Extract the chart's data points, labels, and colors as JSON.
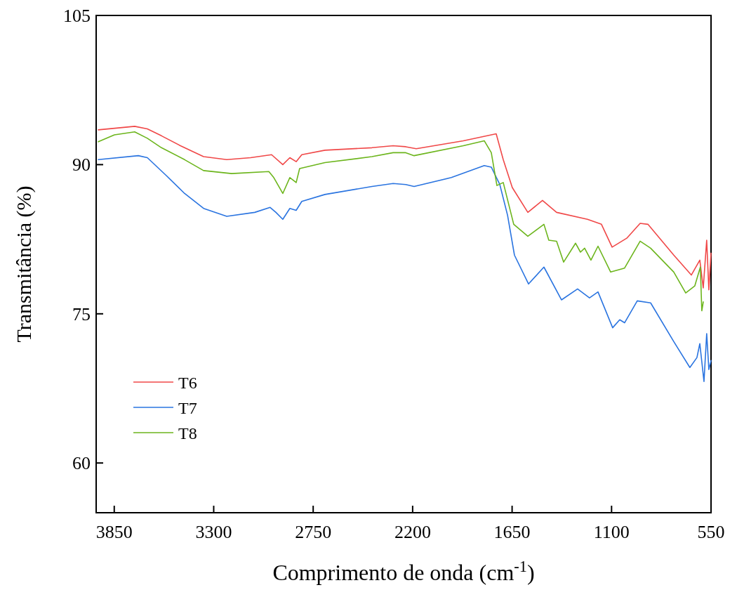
{
  "chart_data": {
    "type": "line",
    "xlabel": "Comprimento de onda (cm$^{-1}$)",
    "ylabel": "Transmitância (%)",
    "xlim": [
      3950,
      550
    ],
    "xticks": [
      3850,
      3300,
      2750,
      2200,
      1650,
      1100,
      550
    ],
    "ylim": [
      55,
      105
    ],
    "yticks": [
      60,
      75,
      90,
      105
    ],
    "grid": false,
    "legend": "bottom left",
    "marker": "none",
    "line_style": "solid",
    "series": [
      {
        "name": "T6",
        "color": "#f04848",
        "x": [
          3938,
          3737,
          3667,
          3589,
          3484,
          3356,
          3228,
          3096,
          2980,
          2918,
          2879,
          2844,
          2813,
          2685,
          2425,
          2308,
          2238,
          2180,
          1920,
          1738,
          1699,
          1649,
          1563,
          1482,
          1404,
          1233,
          1156,
          1097,
          1016,
          942,
          899,
          756,
          659,
          612,
          593,
          574,
          562,
          550
        ],
        "values": [
          93.5,
          93.85,
          93.6,
          92.9,
          91.9,
          90.8,
          90.5,
          90.7,
          91.0,
          90.0,
          90.7,
          90.3,
          91.0,
          91.45,
          91.7,
          91.9,
          91.8,
          91.6,
          92.4,
          93.1,
          90.5,
          87.7,
          85.2,
          86.4,
          85.2,
          84.5,
          84.0,
          81.7,
          82.6,
          84.1,
          84.0,
          80.9,
          78.9,
          80.4,
          77.6,
          82.4,
          77.4,
          81.1
        ]
      },
      {
        "name": "T7",
        "color": "#2a74e0",
        "x": [
          3938,
          3717,
          3667,
          3562,
          3461,
          3356,
          3228,
          3073,
          2988,
          2956,
          2918,
          2879,
          2844,
          2813,
          2685,
          2425,
          2308,
          2238,
          2192,
          1986,
          1804,
          1765,
          1718,
          1675,
          1637,
          1559,
          1474,
          1377,
          1288,
          1222,
          1175,
          1094,
          1055,
          1028,
          958,
          884,
          756,
          667,
          628,
          612,
          589,
          574,
          562,
          550
        ],
        "values": [
          90.5,
          90.9,
          90.7,
          88.9,
          87.1,
          85.6,
          84.8,
          85.2,
          85.7,
          85.2,
          84.5,
          85.6,
          85.4,
          86.3,
          87.0,
          87.8,
          88.1,
          88.0,
          87.8,
          88.7,
          89.9,
          89.75,
          88.0,
          84.9,
          80.9,
          78.0,
          79.7,
          76.4,
          77.5,
          76.6,
          77.2,
          73.6,
          74.4,
          74.1,
          76.3,
          76.1,
          72.2,
          69.6,
          70.6,
          72.0,
          68.2,
          73.0,
          69.4,
          70.3
        ]
      },
      {
        "name": "T8",
        "color": "#6cb51c",
        "x": [
          3938,
          3849,
          3737,
          3667,
          3589,
          3461,
          3356,
          3201,
          2995,
          2968,
          2918,
          2879,
          2844,
          2825,
          2685,
          2425,
          2308,
          2238,
          2192,
          1920,
          1804,
          1765,
          1734,
          1699,
          1641,
          1563,
          1474,
          1447,
          1404,
          1365,
          1299,
          1272,
          1249,
          1214,
          1175,
          1105,
          1028,
          942,
          884,
          756,
          690,
          640,
          609,
          601,
          593
        ],
        "values": [
          92.3,
          93.0,
          93.3,
          92.65,
          91.7,
          90.5,
          89.4,
          89.1,
          89.3,
          88.7,
          87.1,
          88.7,
          88.2,
          89.6,
          90.2,
          90.8,
          91.2,
          91.2,
          90.9,
          91.9,
          92.4,
          91.2,
          87.9,
          88.2,
          84.0,
          82.8,
          84.0,
          82.4,
          82.3,
          80.2,
          82.1,
          81.2,
          81.6,
          80.4,
          81.8,
          79.2,
          79.6,
          82.3,
          81.6,
          79.2,
          77.1,
          77.8,
          79.7,
          75.3,
          76.2
        ]
      }
    ]
  }
}
